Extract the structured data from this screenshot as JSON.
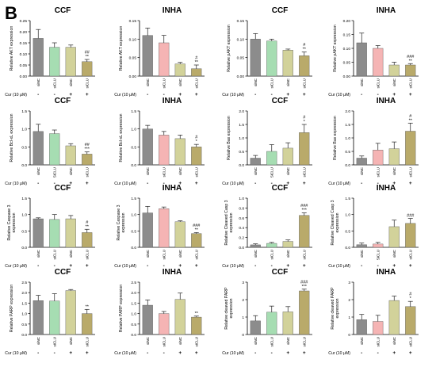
{
  "figure": {
    "panel_letter": "B"
  },
  "colors": {
    "siNC": "#8c8c8c",
    "siCLU": "#a6ddb2",
    "siNC_cur_ccf": "#d2d29a",
    "siCLU_cur_ccf": "#b9aa6a",
    "siCLU_ctrl_inha": "#f5b4b4",
    "siNC_cur_inha": "#d2d29a",
    "siCLU_cur_inha": "#b9aa6a"
  },
  "chart_data": [
    {
      "type": "bar",
      "title": "CCF",
      "ylabel": "Relative AKT expression",
      "ylim": [
        0,
        0.25
      ],
      "yticks": [
        "0.00",
        "0.05",
        "0.10",
        "0.15",
        "0.20",
        "0.25"
      ],
      "categories": [
        "siNC",
        "siCLU",
        "siNC",
        "siCLU"
      ],
      "cur_label": "Cur (10 μM)",
      "cur": [
        "-",
        "-",
        "+",
        "+"
      ],
      "values": [
        0.17,
        0.13,
        0.13,
        0.065
      ],
      "errors": [
        0.04,
        0.02,
        0.01,
        0.01
      ],
      "sig": [
        "",
        "",
        "",
        "##\n**"
      ],
      "bar_colors": [
        "#8c8c8c",
        "#a6ddb2",
        "#d2d29a",
        "#b9aa6a"
      ]
    },
    {
      "type": "bar",
      "title": "INHA",
      "ylabel": "Relative AKT expression",
      "ylim": [
        0,
        0.15
      ],
      "yticks": [
        "0.00",
        "0.05",
        "0.10",
        "0.15"
      ],
      "categories": [
        "siNC",
        "siCLU",
        "siNC",
        "siCLU"
      ],
      "cur_label": "Cur (10 μM)",
      "cur": [
        "-",
        "-",
        "+",
        "+"
      ],
      "values": [
        0.11,
        0.09,
        0.033,
        0.02
      ],
      "errors": [
        0.02,
        0.02,
        0.004,
        0.01
      ],
      "sig": [
        "",
        "",
        "",
        "#\n**"
      ],
      "bar_colors": [
        "#8c8c8c",
        "#f5b4b4",
        "#d2d29a",
        "#b9aa6a"
      ]
    },
    {
      "type": "bar",
      "title": "CCF",
      "ylabel": "Relative pAKT expression",
      "ylim": [
        0,
        0.15
      ],
      "yticks": [
        "0.00",
        "0.05",
        "0.10",
        "0.15"
      ],
      "categories": [
        "siNC",
        "siCLU",
        "siNC",
        "siCLU"
      ],
      "cur_label": "Cur (10 μM)",
      "cur": [
        "-",
        "-",
        "+",
        "+"
      ],
      "values": [
        0.1,
        0.095,
        0.07,
        0.055
      ],
      "errors": [
        0.015,
        0.005,
        0.003,
        0.01
      ],
      "sig": [
        "",
        "",
        "",
        "#\n**"
      ],
      "bar_colors": [
        "#8c8c8c",
        "#a6ddb2",
        "#d2d29a",
        "#b9aa6a"
      ]
    },
    {
      "type": "bar",
      "title": "INHA",
      "ylabel": "Relative pAKT expression",
      "ylim": [
        0,
        0.2
      ],
      "yticks": [
        "0.00",
        "0.05",
        "0.10",
        "0.15",
        "0.20"
      ],
      "categories": [
        "siNC",
        "siCLU",
        "siNC",
        "siCLU"
      ],
      "cur_label": "Cur (10 μM)",
      "cur": [
        "-",
        "-",
        "+",
        "+"
      ],
      "values": [
        0.12,
        0.1,
        0.04,
        0.04
      ],
      "errors": [
        0.035,
        0.01,
        0.01,
        0.005
      ],
      "sig": [
        "",
        "",
        "",
        "###\n**"
      ],
      "bar_colors": [
        "#8c8c8c",
        "#f5b4b4",
        "#d2d29a",
        "#b9aa6a"
      ]
    },
    {
      "type": "bar",
      "title": "CCF",
      "ylabel": "Relative Bcl-xL expression",
      "ylim": [
        0,
        1.5
      ],
      "yticks": [
        "0.0",
        "0.5",
        "1.0",
        "1.5"
      ],
      "categories": [
        "siNC",
        "SiCLU",
        "siNC",
        "siCLU"
      ],
      "cur_label": "Cur (10 μM)",
      "cur": [
        "-",
        "-",
        "+",
        "+"
      ],
      "values": [
        0.93,
        0.87,
        0.53,
        0.3
      ],
      "errors": [
        0.2,
        0.1,
        0.06,
        0.06
      ],
      "sig": [
        "",
        "",
        "",
        "##\n***"
      ],
      "bar_colors": [
        "#8c8c8c",
        "#a6ddb2",
        "#d2d29a",
        "#b9aa6a"
      ]
    },
    {
      "type": "bar",
      "title": "INHA",
      "ylabel": "Relative Bcl-xL expression",
      "ylim": [
        0,
        1.5
      ],
      "yticks": [
        "0.0",
        "0.5",
        "1.0",
        "1.5"
      ],
      "categories": [
        "siNC",
        "siCLU",
        "siNC",
        "siCLU"
      ],
      "cur_label": "Cur (10 μM)",
      "cur": [
        "-",
        "-",
        "+",
        "+"
      ],
      "values": [
        1.0,
        0.83,
        0.73,
        0.5
      ],
      "errors": [
        0.1,
        0.1,
        0.1,
        0.07
      ],
      "sig": [
        "",
        "",
        "",
        "#\n*"
      ],
      "bar_colors": [
        "#8c8c8c",
        "#f5b4b4",
        "#d2d29a",
        "#b9aa6a"
      ]
    },
    {
      "type": "bar",
      "title": "CCF",
      "ylabel": "Relative Bax expression",
      "ylim": [
        0,
        2.0
      ],
      "yticks": [
        "0.0",
        "0.5",
        "1.0",
        "1.5",
        "2.0"
      ],
      "categories": [
        "siNC",
        "SiCLU",
        "siNC",
        "siCLU"
      ],
      "cur_label": "Cur (10 μM)",
      "cur": [
        "-",
        "-",
        "+",
        "+"
      ],
      "values": [
        0.25,
        0.5,
        0.62,
        1.2
      ],
      "errors": [
        0.1,
        0.25,
        0.2,
        0.3
      ],
      "sig": [
        "",
        "",
        "",
        "#\n*"
      ],
      "bar_colors": [
        "#8c8c8c",
        "#a6ddb2",
        "#d2d29a",
        "#b9aa6a"
      ]
    },
    {
      "type": "bar",
      "title": "INHA",
      "ylabel": "Relative Bax expression",
      "ylim": [
        0,
        2.0
      ],
      "yticks": [
        "0.0",
        "0.5",
        "1.0",
        "1.5",
        "2.0"
      ],
      "categories": [
        "siNC",
        "siCLU",
        "siNC",
        "siCLU"
      ],
      "cur_label": "Cur (10 μM)",
      "cur": [
        "-",
        "-",
        "+",
        "+"
      ],
      "values": [
        0.25,
        0.55,
        0.6,
        1.25
      ],
      "errors": [
        0.08,
        0.25,
        0.25,
        0.3
      ],
      "sig": [
        "",
        "",
        "",
        "#\n**"
      ],
      "bar_colors": [
        "#8c8c8c",
        "#f5b4b4",
        "#d2d29a",
        "#b9aa6a"
      ]
    },
    {
      "type": "bar",
      "title": "CCF",
      "ylabel": "Relative Caspase 3\nexpression",
      "ylim": [
        0,
        1.5
      ],
      "yticks": [
        "0.0",
        "0.5",
        "1.0",
        "1.5"
      ],
      "categories": [
        "siNC",
        "siCLU",
        "siNC",
        "siCLU"
      ],
      "cur_label": "Cur (10 μM)",
      "cur": [
        "-",
        "-",
        "+",
        "+"
      ],
      "values": [
        0.87,
        0.85,
        0.87,
        0.45
      ],
      "errors": [
        0.03,
        0.15,
        0.1,
        0.1
      ],
      "sig": [
        "",
        "",
        "",
        "#\n**"
      ],
      "bar_colors": [
        "#8c8c8c",
        "#a6ddb2",
        "#d2d29a",
        "#b9aa6a"
      ]
    },
    {
      "type": "bar",
      "title": "INHA",
      "ylabel": "Relative Caspase 3\nexpression",
      "ylim": [
        0,
        1.5
      ],
      "yticks": [
        "0.0",
        "0.5",
        "1.0",
        "1.5"
      ],
      "categories": [
        "siNC",
        "siCLU",
        "siNC",
        "siCLU"
      ],
      "cur_label": "Cur (10 μM)",
      "cur": [
        "-",
        "-",
        "+",
        "+"
      ],
      "values": [
        1.05,
        1.18,
        0.78,
        0.42
      ],
      "errors": [
        0.2,
        0.05,
        0.03,
        0.03
      ],
      "sig": [
        "",
        "",
        "",
        "###\n**"
      ],
      "bar_colors": [
        "#8c8c8c",
        "#f5b4b4",
        "#d2d29a",
        "#b9aa6a"
      ]
    },
    {
      "type": "bar",
      "title": "CCF",
      "ylabel": "Relative Cleaved Casp 3\nexpression",
      "ylim": [
        0,
        1.0
      ],
      "yticks": [
        "0.0",
        "0.2",
        "0.4",
        "0.6",
        "0.8",
        "1.0"
      ],
      "categories": [
        "siNC",
        "siCLU",
        "siNC",
        "siCLU"
      ],
      "cur_label": "Cur (10 μM)",
      "cur": [
        "-",
        "-",
        "+",
        "+"
      ],
      "values": [
        0.05,
        0.08,
        0.12,
        0.65
      ],
      "errors": [
        0.02,
        0.02,
        0.03,
        0.05
      ],
      "sig": [
        "",
        "",
        "",
        "###\n***"
      ],
      "bar_colors": [
        "#8c8c8c",
        "#a6ddb2",
        "#d2d29a",
        "#b9aa6a"
      ]
    },
    {
      "type": "bar",
      "title": "INHA",
      "ylabel": "Relative Cleaved Casp 3\nexpression",
      "ylim": [
        0,
        1.5
      ],
      "yticks": [
        "0.0",
        "0.5",
        "1.0",
        "1.5"
      ],
      "categories": [
        "siNC",
        "SiCLU",
        "siNC",
        "siCLU"
      ],
      "cur_label": "Cur (10 μM)",
      "cur": [
        "-",
        "-",
        "+",
        "+"
      ],
      "values": [
        0.08,
        0.1,
        0.63,
        0.73
      ],
      "errors": [
        0.05,
        0.05,
        0.2,
        0.15
      ],
      "sig": [
        "",
        "",
        "",
        "###"
      ],
      "bar_colors": [
        "#8c8c8c",
        "#f5b4b4",
        "#d2d29a",
        "#b9aa6a"
      ]
    },
    {
      "type": "bar",
      "title": "CCF",
      "ylabel": "Relative PARP expression",
      "ylim": [
        0,
        2.5
      ],
      "yticks": [
        "0.0",
        "0.5",
        "1.0",
        "1.5",
        "2.0",
        "2.5"
      ],
      "categories": [
        "siNC",
        "siCLU",
        "siNC",
        "siCLU"
      ],
      "cur_label": "Cur (10 μM)",
      "cur": [
        "-",
        "-",
        "+",
        "+"
      ],
      "values": [
        1.62,
        1.6,
        2.1,
        1.0
      ],
      "errors": [
        0.25,
        0.35,
        0.05,
        0.2
      ],
      "sig": [
        "",
        "",
        "",
        "**"
      ],
      "bar_colors": [
        "#8c8c8c",
        "#a6ddb2",
        "#d2d29a",
        "#b9aa6a"
      ]
    },
    {
      "type": "bar",
      "title": "INHA",
      "ylabel": "Relative PARP expression",
      "ylim": [
        0,
        2.5
      ],
      "yticks": [
        "0.0",
        "0.5",
        "1.0",
        "1.5",
        "2.0",
        "2.5"
      ],
      "categories": [
        "siNC",
        "siCLU",
        "siNC",
        "siCLU"
      ],
      "cur_label": "Cur (10 μM)",
      "cur": [
        "-",
        "-",
        "+",
        "+"
      ],
      "values": [
        1.4,
        1.0,
        1.68,
        0.83
      ],
      "errors": [
        0.25,
        0.1,
        0.3,
        0.05
      ],
      "sig": [
        "",
        "",
        "",
        "**"
      ],
      "bar_colors": [
        "#8c8c8c",
        "#f5b4b4",
        "#d2d29a",
        "#b9aa6a"
      ]
    },
    {
      "type": "bar",
      "title": "CCF",
      "ylabel": "Relative cleaved PARP\nexpression",
      "ylim": [
        0,
        3.0
      ],
      "yticks": [
        "0",
        "1",
        "2",
        "3"
      ],
      "categories": [
        "siNC",
        "siCLU",
        "siNC",
        "siCLU"
      ],
      "cur_label": "Cur (10 μM)",
      "cur": [
        "-",
        "-",
        "+",
        "+"
      ],
      "values": [
        0.78,
        1.28,
        1.3,
        2.5
      ],
      "errors": [
        0.3,
        0.35,
        0.3,
        0.1
      ],
      "sig": [
        "",
        "",
        "",
        "###\n***"
      ],
      "bar_colors": [
        "#8c8c8c",
        "#a6ddb2",
        "#d2d29a",
        "#b9aa6a"
      ]
    },
    {
      "type": "bar",
      "title": "INHA",
      "ylabel": "Relative cleaved PARP\nexpression",
      "ylim": [
        0,
        3.0
      ],
      "yticks": [
        "0",
        "1",
        "2",
        "3"
      ],
      "categories": [
        "siNC",
        "siCLU",
        "siNC",
        "siCLU"
      ],
      "cur_label": "Cur (10 μM)",
      "cur": [
        "-",
        "-",
        "+",
        "+"
      ],
      "values": [
        0.85,
        0.75,
        1.95,
        1.6
      ],
      "errors": [
        0.3,
        0.35,
        0.25,
        0.3
      ],
      "sig": [
        "",
        "",
        "",
        "#\n*"
      ],
      "bar_colors": [
        "#8c8c8c",
        "#f5b4b4",
        "#d2d29a",
        "#b9aa6a"
      ]
    }
  ]
}
